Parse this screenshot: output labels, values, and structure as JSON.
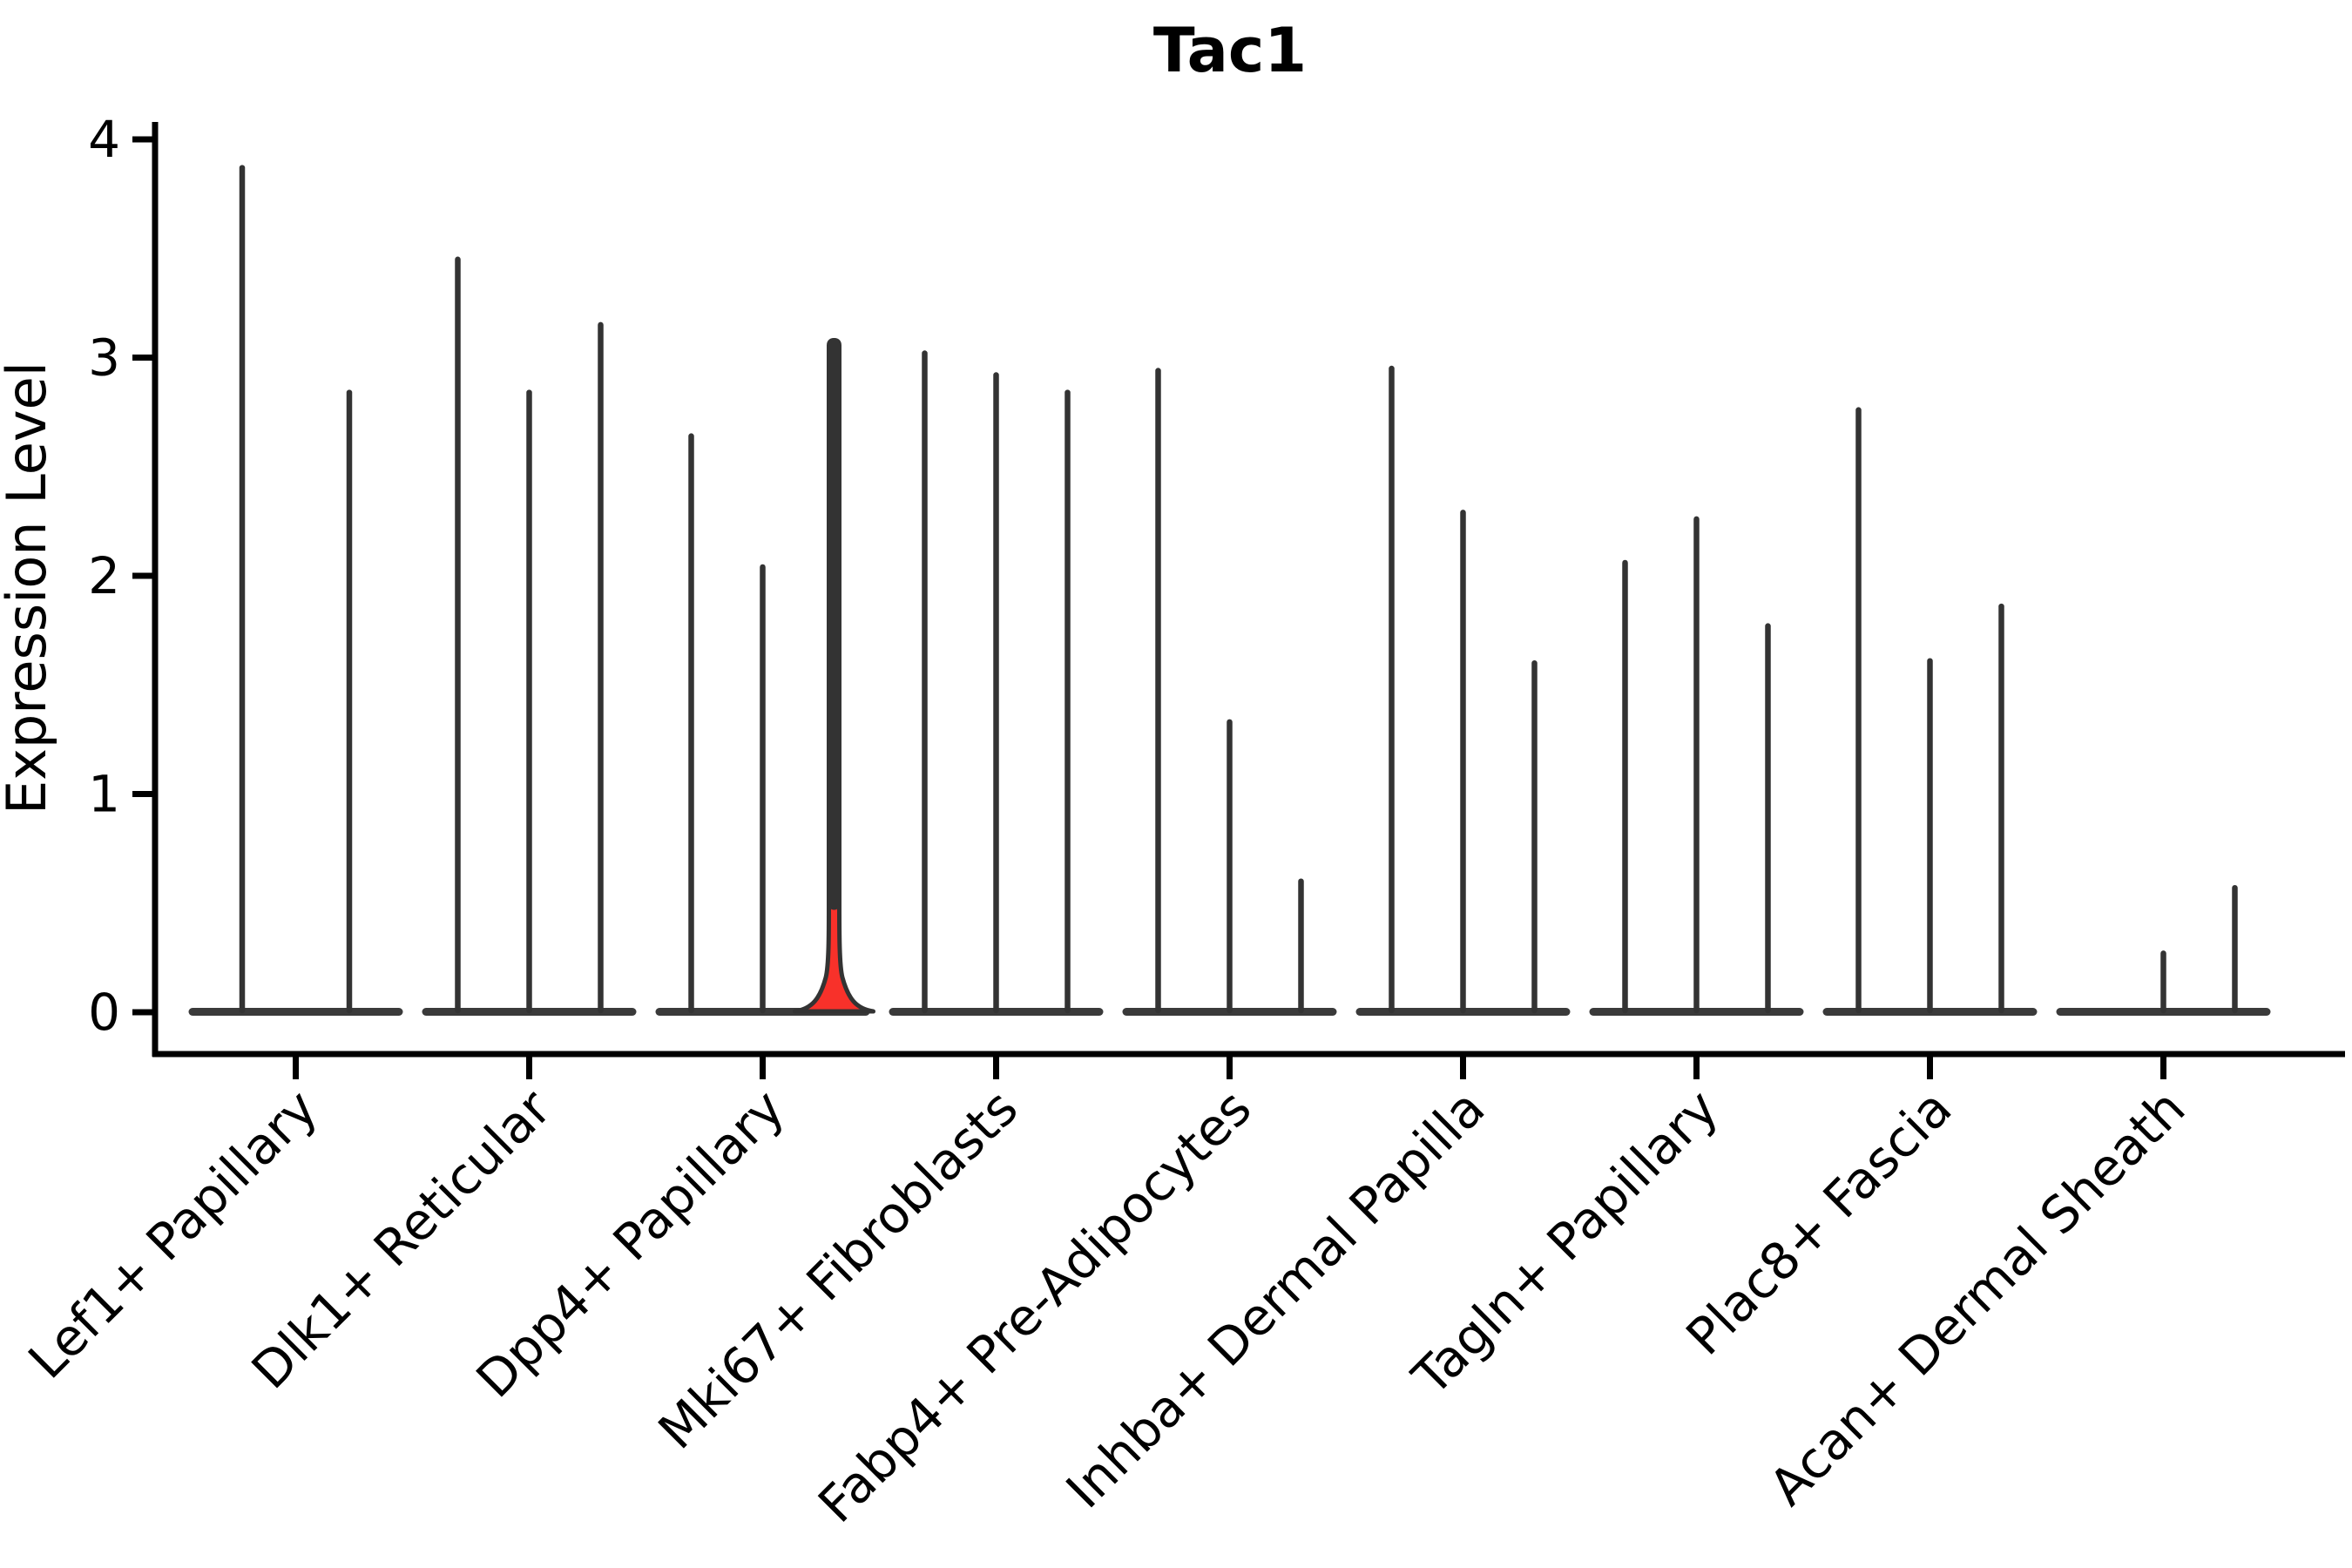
{
  "chart_data": {
    "type": "violin",
    "title": "Tac1",
    "xlabel": "",
    "ylabel": "Expression Level",
    "ylim": [
      0,
      4
    ],
    "yticks": [
      "0",
      "1",
      "2",
      "3",
      "4"
    ],
    "grid": false,
    "legend": "none",
    "categories": [
      "Lef1+ Papillary",
      "Dlk1+ Reticular",
      "Dpp4+ Papillary",
      "Mki67+ Fibroblasts",
      "Fabp4+ Pre-Adipocytes",
      "Inhba+ Dermal Papilla",
      "Tagln+ Papillary",
      "Plac8+ Fascia",
      "Acan+ Dermal Sheath"
    ],
    "groups": [
      {
        "label": "Lef1+ Papillary",
        "violins": [
          {
            "max": 3.87
          },
          {
            "max": 2.84
          }
        ]
      },
      {
        "label": "Dlk1+ Reticular",
        "violins": [
          {
            "max": 3.45
          },
          {
            "max": 2.84
          },
          {
            "max": 3.15
          }
        ]
      },
      {
        "label": "Dpp4+ Papillary",
        "violins": [
          {
            "max": 2.64
          },
          {
            "max": 2.04
          },
          {
            "max": 3.08,
            "filled": true,
            "bell_max": 0.35
          }
        ]
      },
      {
        "label": "Mki67+ Fibroblasts",
        "violins": [
          {
            "max": 3.02
          },
          {
            "max": 2.92
          },
          {
            "max": 2.84
          }
        ]
      },
      {
        "label": "Fabp4+ Pre-Adipocytes",
        "violins": [
          {
            "max": 2.94
          },
          {
            "max": 1.33
          },
          {
            "max": 0.6
          }
        ]
      },
      {
        "label": "Inhba+ Dermal Papilla",
        "violins": [
          {
            "max": 2.95
          },
          {
            "max": 2.29
          },
          {
            "max": 1.6
          }
        ]
      },
      {
        "label": "Tagln+ Papillary",
        "violins": [
          {
            "max": 2.06
          },
          {
            "max": 2.26
          },
          {
            "max": 1.77
          }
        ]
      },
      {
        "label": "Plac8+ Fascia",
        "violins": [
          {
            "max": 2.76
          },
          {
            "max": 1.61
          },
          {
            "max": 1.86
          }
        ]
      },
      {
        "label": "Acan+ Dermal Sheath",
        "violins": [
          {
            "max": 0.0
          },
          {
            "max": 0.27
          },
          {
            "max": 0.57
          }
        ]
      }
    ],
    "colors": {
      "outline": "#333333",
      "body": "#3a3a3a",
      "highlight_fill": "#f8312a",
      "background": "#ffffff"
    }
  }
}
